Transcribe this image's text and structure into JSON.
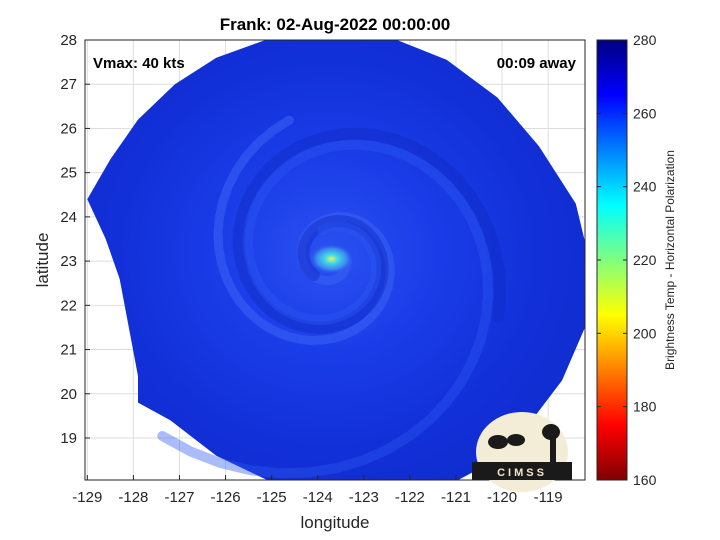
{
  "chart_data": {
    "type": "heatmap",
    "title": "Frank: 02-Aug-2022 00:00:00",
    "xlabel": "longitude",
    "ylabel": "latitude",
    "xlim": [
      -129.05,
      -118.2
    ],
    "ylim": [
      18.05,
      28
    ],
    "x_ticks": [
      -129,
      -128,
      -127,
      -126,
      -125,
      -124,
      -123,
      -122,
      -121,
      -120,
      -119
    ],
    "y_ticks": [
      19,
      20,
      21,
      22,
      23,
      24,
      25,
      26,
      27,
      28
    ],
    "grid": true,
    "annotations": {
      "top_left": "Vmax: 40 kts",
      "top_right": "00:09 away"
    },
    "storm_center": {
      "lon": -123.7,
      "lat": 23.05
    },
    "colorbar": {
      "label": "Brightness Temp - Horizontal Polarization",
      "range": [
        160,
        280
      ],
      "ticks": [
        160,
        180,
        200,
        220,
        240,
        260,
        280
      ],
      "colors": [
        "#800000",
        "#ff0000",
        "#ff8000",
        "#ffff00",
        "#80ff80",
        "#00ffff",
        "#0080ff",
        "#0000ff",
        "#000080"
      ]
    }
  },
  "logo": {
    "text": "CIMSS"
  }
}
